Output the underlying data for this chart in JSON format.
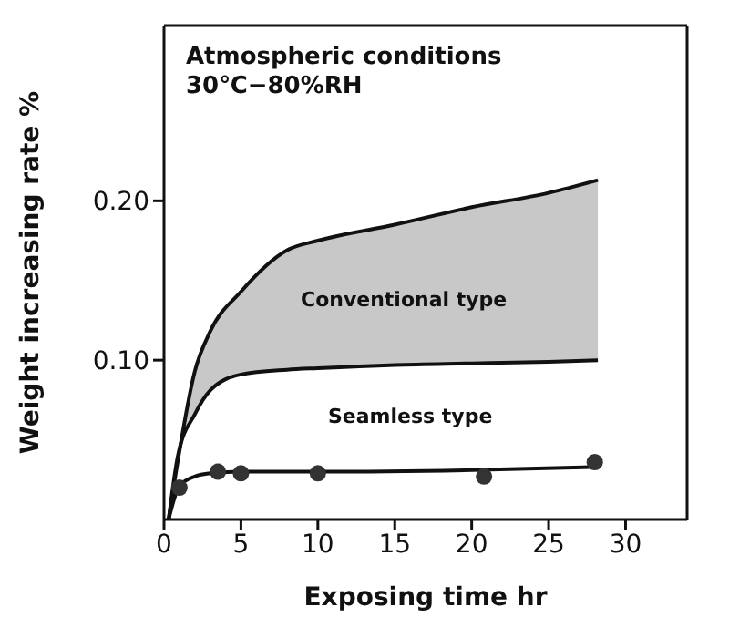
{
  "chart_data": {
    "type": "line",
    "xlabel": "Exposing time hr",
    "ylabel": "Weight increasing rate %",
    "annotations": [
      "Atmospheric conditions",
      "30℃−80%RH"
    ],
    "xlim": [
      0,
      34
    ],
    "xticks": [
      0,
      5,
      10,
      15,
      20,
      25,
      30
    ],
    "ylim": [
      0,
      0.31
    ],
    "yticks": [
      {
        "value": 0.1,
        "label": "0.10"
      },
      {
        "value": 0.2,
        "label": "0.20"
      }
    ],
    "grid": false,
    "legend": false,
    "marker": "none",
    "series": [
      {
        "name": "Conventional type",
        "color": "#111111",
        "x": [
          0.3,
          0.9,
          2,
          3,
          5,
          8,
          10,
          15,
          20,
          25,
          28.2
        ],
        "values": [
          0,
          0.037,
          0.093,
          0.118,
          0.143,
          0.169,
          0.175,
          0.185,
          0.196,
          0.205,
          0.213
        ]
      },
      {
        "color": "#111111",
        "x": [
          0.3,
          0.9,
          2,
          3,
          5,
          8,
          10,
          15,
          20,
          25,
          28.2
        ],
        "values": [
          0,
          0.04,
          0.066,
          0.081,
          0.091,
          0.094,
          0.095,
          0.097,
          0.098,
          0.099,
          0.1
        ]
      },
      {
        "color": "#111111",
        "x": [
          0.3,
          1,
          2,
          3,
          5,
          10,
          20,
          28.2
        ],
        "values": [
          0,
          0.021,
          0.027,
          0.029,
          0.03,
          0.03,
          0.031,
          0.033
        ]
      },
      {
        "name": "Seamless type",
        "type": "scatter",
        "color": "#333333",
        "marker": "circle",
        "x": [
          1,
          3.5,
          5,
          10,
          20.8,
          28
        ],
        "values": [
          0.02,
          0.03,
          0.029,
          0.029,
          0.027,
          0.036
        ]
      }
    ]
  }
}
